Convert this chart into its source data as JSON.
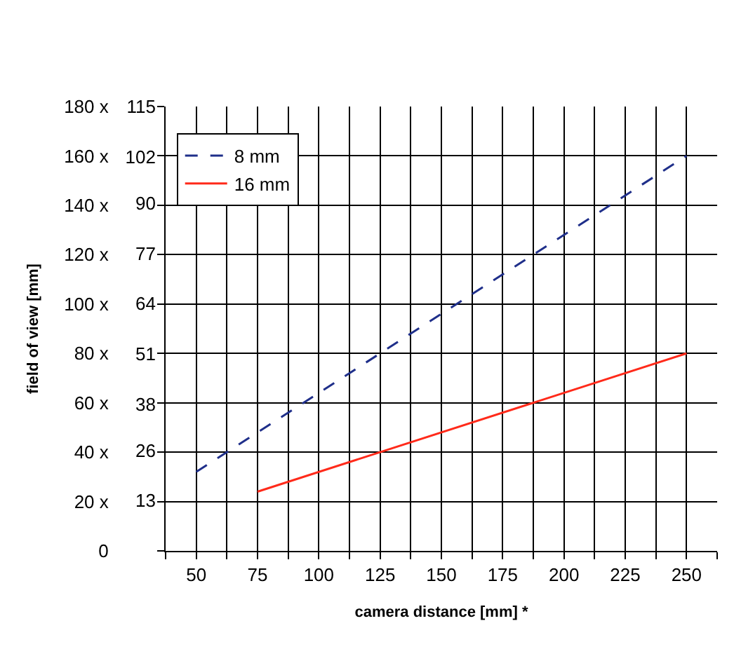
{
  "chart_data": {
    "type": "line",
    "xlabel": "camera distance [mm] *",
    "ylabel": "field of view [mm]",
    "xlim": [
      37.5,
      262.5
    ],
    "xticks": [
      {
        "value": 37.5,
        "label": null
      },
      50,
      {
        "value": 62.5,
        "label": null
      },
      75,
      {
        "value": 87.5,
        "label": null
      },
      100,
      {
        "value": 112.5,
        "label": null
      },
      125,
      {
        "value": 137.5,
        "label": null
      },
      150,
      {
        "value": 162.5,
        "label": null
      },
      175,
      {
        "value": 187.5,
        "label": null
      },
      200,
      {
        "value": 212.5,
        "label": null
      },
      225,
      {
        "value": 237.5,
        "label": null
      },
      250,
      {
        "value": 262.5,
        "label": null
      }
    ],
    "ylim": [
      0,
      180
    ],
    "yticks": [
      0,
      {
        "value": 20,
        "label": "20 x"
      },
      {
        "value": 40,
        "label": "40 x"
      },
      {
        "value": 60,
        "label": "60 x"
      },
      {
        "value": 80,
        "label": "80 x"
      },
      {
        "value": 100,
        "label": "100 x"
      },
      {
        "value": 120,
        "label": "120 x"
      },
      {
        "value": 140,
        "label": "140 x"
      },
      {
        "value": 160,
        "label": "160 x"
      },
      {
        "value": 180,
        "label": "180 x"
      }
    ],
    "y2lim": [
      0,
      115
    ],
    "y2ticks": [
      13,
      26,
      38,
      51,
      64,
      77,
      90,
      102,
      115
    ],
    "grid": true,
    "legend": "top left",
    "marker": "none",
    "series": [
      {
        "name": "8 mm",
        "color": "#1f2f8a",
        "line_style": "dashed",
        "x": [
          50,
          250
        ],
        "values": [
          32,
          160
        ]
      },
      {
        "name": "16 mm",
        "color": "#ff2a1a",
        "line_style": "solid",
        "x": [
          75,
          250
        ],
        "values": [
          24,
          80
        ]
      }
    ]
  }
}
